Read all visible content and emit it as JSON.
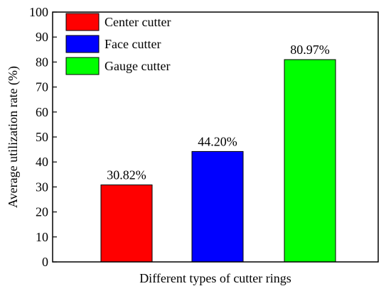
{
  "chart_data": {
    "type": "bar",
    "title": "",
    "xlabel": "Different types of cutter rings",
    "ylabel": "Average utilization rate (%)",
    "ylim": [
      0,
      100
    ],
    "yticks": [
      0,
      10,
      20,
      30,
      40,
      50,
      60,
      70,
      80,
      90,
      100
    ],
    "grid": false,
    "legend_position": "top-left",
    "series": [
      {
        "name": "Center cutter",
        "value": 30.82,
        "label": "30.82%",
        "color": "#ff0000"
      },
      {
        "name": "Face cutter",
        "value": 44.2,
        "label": "44.20%",
        "color": "#0000ff"
      },
      {
        "name": "Gauge cutter",
        "value": 80.97,
        "label": "80.97%",
        "color": "#00ff00"
      }
    ]
  }
}
